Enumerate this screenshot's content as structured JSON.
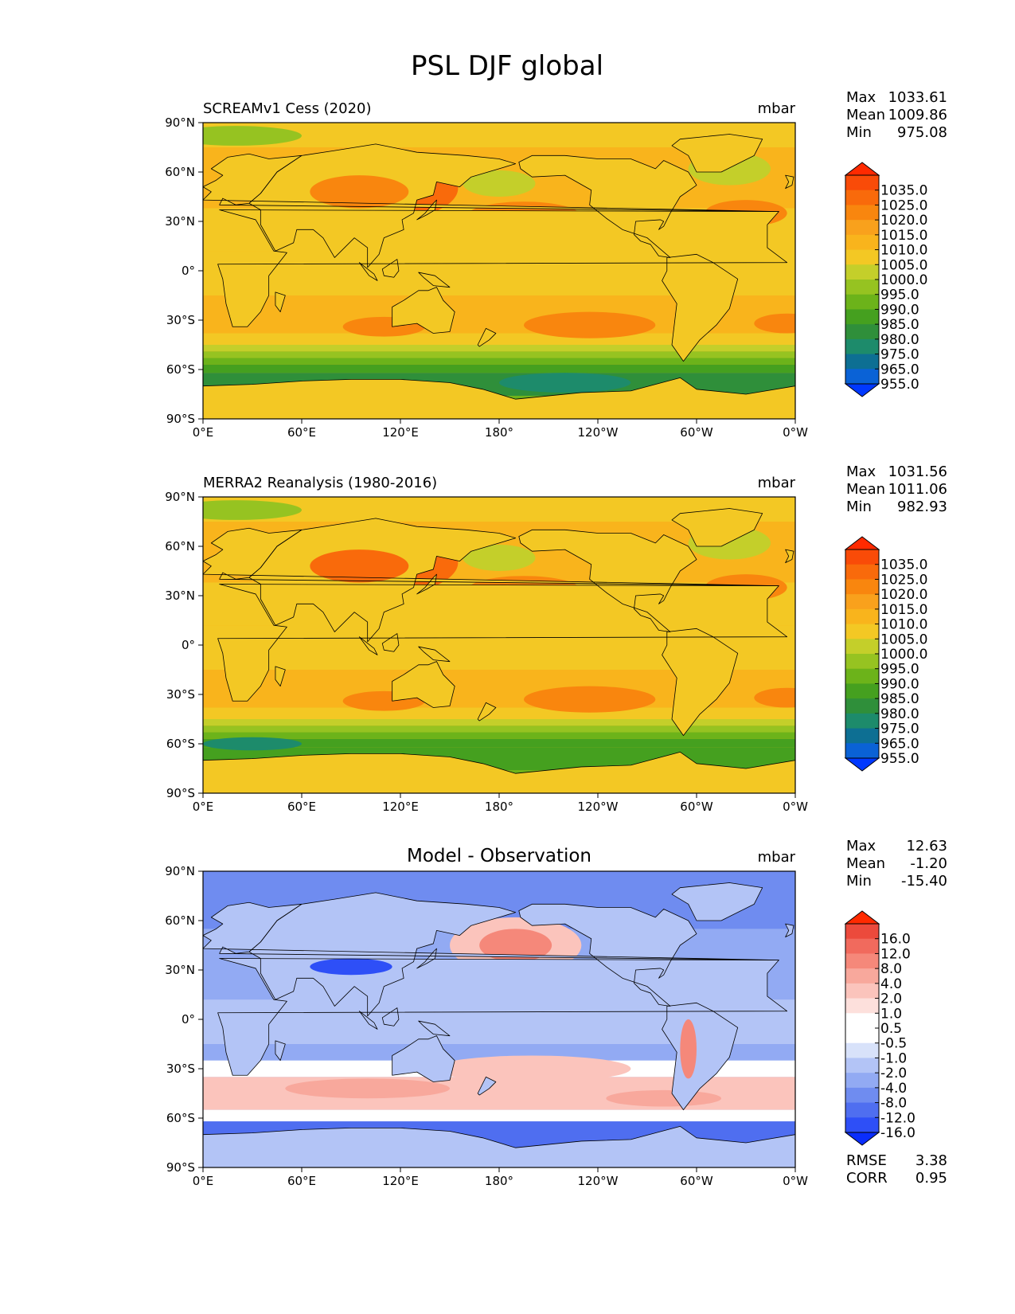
{
  "title": "PSL DJF global",
  "axes": {
    "xticks": [
      "0°E",
      "60°E",
      "120°E",
      "180°",
      "120°W",
      "60°W",
      "0°W"
    ],
    "yticks": [
      "90°N",
      "60°N",
      "30°N",
      "0°",
      "30°S",
      "60°S",
      "90°S"
    ]
  },
  "palettes": {
    "psl": [
      "#0038ff",
      "#0a62d6",
      "#0d6f93",
      "#1d8b6b",
      "#2f8f3a",
      "#45a01f",
      "#6cb31a",
      "#96c321",
      "#c4cf2a",
      "#f3c824",
      "#f9b41c",
      "#f9a11c",
      "#f9860e",
      "#f96a0b",
      "#f94b08",
      "#ff2a00"
    ],
    "diff": [
      "#0a2dfc",
      "#2e4ff7",
      "#4f6ef0",
      "#6f8cf0",
      "#92aaf3",
      "#b3c4f6",
      "#d8e2fa",
      "#ffffff",
      "#ffffff",
      "#fde0dc",
      "#fbc4bc",
      "#f8a89c",
      "#f5887a",
      "#f16a5d",
      "#ec4a3c",
      "#ff2a00"
    ]
  },
  "panels": [
    {
      "left_title": "SCREAMv1 Cess (2020)",
      "center_title": "",
      "units": "mbar",
      "stats": {
        "max_label": "Max",
        "max": "1033.61",
        "mean_label": "Mean",
        "mean": "1009.86",
        "min_label": "Min",
        "min": "975.08"
      },
      "colorbar_labels": [
        "1035.0",
        "1025.0",
        "1020.0",
        "1015.0",
        "1010.0",
        "1005.0",
        "1000.0",
        "995.0",
        "990.0",
        "985.0",
        "980.0",
        "975.0",
        "965.0",
        "955.0"
      ]
    },
    {
      "left_title": "MERRA2 Reanalysis (1980-2016)",
      "center_title": "",
      "units": "mbar",
      "stats": {
        "max_label": "Max",
        "max": "1031.56",
        "mean_label": "Mean",
        "mean": "1011.06",
        "min_label": "Min",
        "min": "982.93"
      },
      "colorbar_labels": [
        "1035.0",
        "1025.0",
        "1020.0",
        "1015.0",
        "1010.0",
        "1005.0",
        "1000.0",
        "995.0",
        "990.0",
        "985.0",
        "980.0",
        "975.0",
        "965.0",
        "955.0"
      ]
    },
    {
      "left_title": "",
      "center_title": "Model - Observation",
      "units": "mbar",
      "stats": {
        "max_label": "Max",
        "max": "12.63",
        "mean_label": "Mean",
        "mean": "-1.20",
        "min_label": "Min",
        "min": "-15.40"
      },
      "colorbar_labels": [
        "16.0",
        "12.0",
        "8.0",
        "4.0",
        "2.0",
        "1.0",
        "0.5",
        "-0.5",
        "-1.0",
        "-2.0",
        "-4.0",
        "-8.0",
        "-12.0",
        "-16.0"
      ],
      "metrics": {
        "rmse_label": "RMSE",
        "rmse": "3.38",
        "corr_label": "CORR",
        "corr": "0.95"
      }
    }
  ],
  "chart_data": [
    {
      "type": "heatmap",
      "title": "SCREAMv1 Cess (2020)",
      "units": "mbar",
      "x": [
        "0°E",
        "60°E",
        "120°E",
        "180°",
        "120°W",
        "60°W",
        "0°W"
      ],
      "y": [
        "90°N",
        "60°N",
        "30°N",
        "0°",
        "30°S",
        "60°S",
        "90°S"
      ],
      "xlim": [
        0,
        360
      ],
      "ylim": [
        -90,
        90
      ],
      "levels": [
        955,
        965,
        975,
        980,
        985,
        990,
        995,
        1000,
        1005,
        1010,
        1015,
        1020,
        1025,
        1035
      ],
      "stats": {
        "max": 1033.61,
        "mean": 1009.86,
        "min": 975.08
      }
    },
    {
      "type": "heatmap",
      "title": "MERRA2 Reanalysis (1980-2016)",
      "units": "mbar",
      "x": [
        "0°E",
        "60°E",
        "120°E",
        "180°",
        "120°W",
        "60°W",
        "0°W"
      ],
      "y": [
        "90°N",
        "60°N",
        "30°N",
        "0°",
        "30°S",
        "60°S",
        "90°S"
      ],
      "xlim": [
        0,
        360
      ],
      "ylim": [
        -90,
        90
      ],
      "levels": [
        955,
        965,
        975,
        980,
        985,
        990,
        995,
        1000,
        1005,
        1010,
        1015,
        1020,
        1025,
        1035
      ],
      "stats": {
        "max": 1031.56,
        "mean": 1011.06,
        "min": 982.93
      }
    },
    {
      "type": "heatmap",
      "title": "Model - Observation",
      "units": "mbar",
      "x": [
        "0°E",
        "60°E",
        "120°E",
        "180°",
        "120°W",
        "60°W",
        "0°W"
      ],
      "y": [
        "90°N",
        "60°N",
        "30°N",
        "0°",
        "30°S",
        "60°S",
        "90°S"
      ],
      "xlim": [
        0,
        360
      ],
      "ylim": [
        -90,
        90
      ],
      "levels": [
        -16,
        -12,
        -8,
        -4,
        -2,
        -1,
        -0.5,
        0.5,
        1,
        2,
        4,
        8,
        12,
        16
      ],
      "stats": {
        "max": 12.63,
        "mean": -1.2,
        "min": -15.4,
        "rmse": 3.38,
        "corr": 0.95
      }
    }
  ]
}
